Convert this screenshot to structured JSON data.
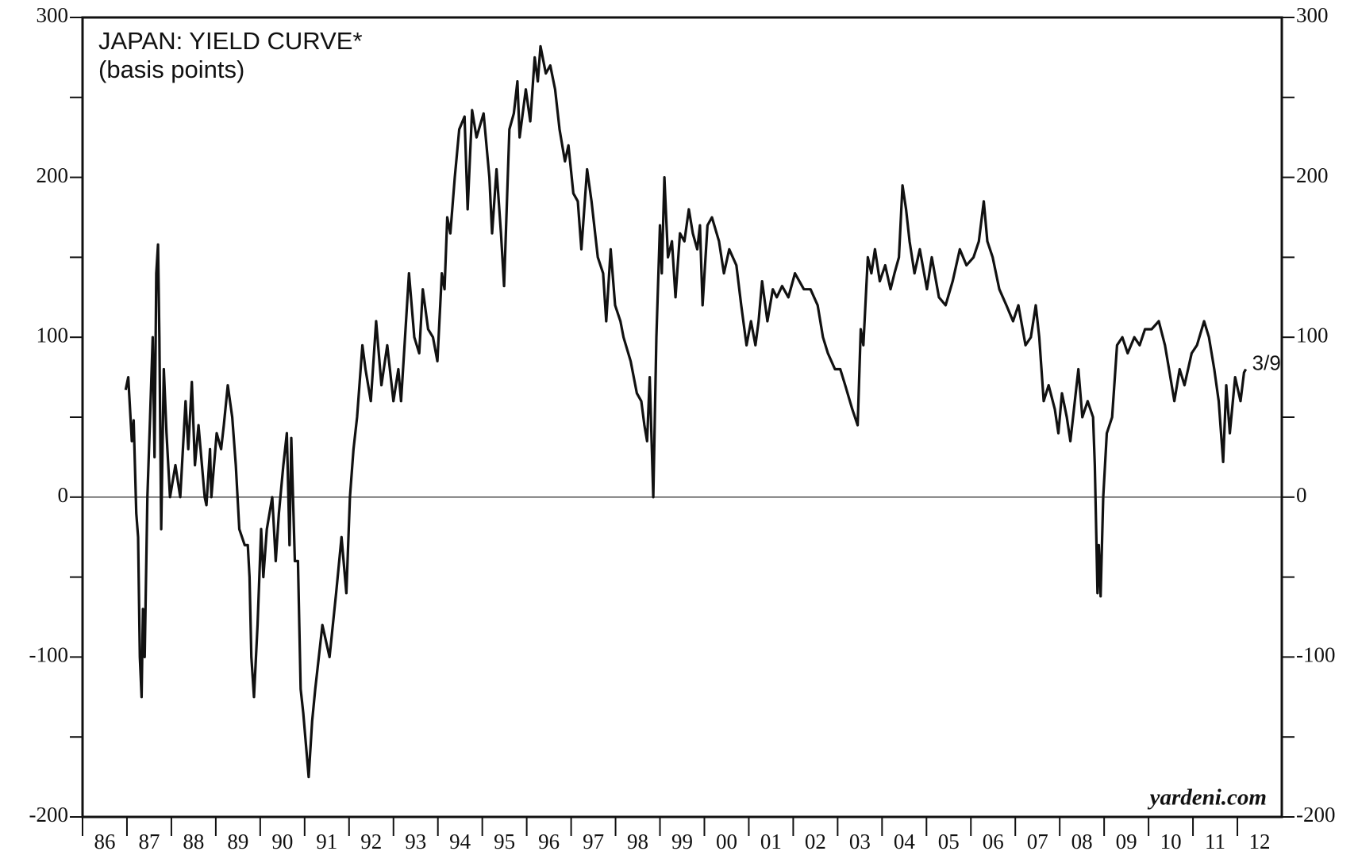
{
  "chart_data": {
    "type": "line",
    "title": "JAPAN: YIELD CURVE*",
    "subtitle": "(basis points)",
    "source": "yardeni.com",
    "end_label": "3/9",
    "xlim": [
      1986,
      2013
    ],
    "xticks": [
      {
        "value": 1986,
        "label": "86"
      },
      {
        "value": 1987,
        "label": "87"
      },
      {
        "value": 1988,
        "label": "88"
      },
      {
        "value": 1989,
        "label": "89"
      },
      {
        "value": 1990,
        "label": "90"
      },
      {
        "value": 1991,
        "label": "91"
      },
      {
        "value": 1992,
        "label": "92"
      },
      {
        "value": 1993,
        "label": "93"
      },
      {
        "value": 1994,
        "label": "94"
      },
      {
        "value": 1995,
        "label": "95"
      },
      {
        "value": 1996,
        "label": "96"
      },
      {
        "value": 1997,
        "label": "97"
      },
      {
        "value": 1998,
        "label": "98"
      },
      {
        "value": 1999,
        "label": "99"
      },
      {
        "value": 2000,
        "label": "00"
      },
      {
        "value": 2001,
        "label": "01"
      },
      {
        "value": 2002,
        "label": "02"
      },
      {
        "value": 2003,
        "label": "03"
      },
      {
        "value": 2004,
        "label": "04"
      },
      {
        "value": 2005,
        "label": "05"
      },
      {
        "value": 2006,
        "label": "06"
      },
      {
        "value": 2007,
        "label": "07"
      },
      {
        "value": 2008,
        "label": "08"
      },
      {
        "value": 2009,
        "label": "09"
      },
      {
        "value": 2010,
        "label": "10"
      },
      {
        "value": 2011,
        "label": "11"
      },
      {
        "value": 2012,
        "label": "12"
      }
    ],
    "ylim": [
      -200,
      300
    ],
    "yticks": [
      -200,
      -100,
      0,
      100,
      200,
      300
    ],
    "yminorticks": [
      -150,
      -50,
      50,
      150,
      250
    ],
    "zero_line": true,
    "series": [
      {
        "color": "#111111",
        "x": [
          1986.97,
          1987.03,
          1987.11,
          1987.15,
          1987.21,
          1987.25,
          1987.29,
          1987.33,
          1987.36,
          1987.4,
          1987.46,
          1987.52,
          1987.58,
          1987.62,
          1987.66,
          1987.7,
          1987.73,
          1987.77,
          1987.83,
          1987.89,
          1987.97,
          1988.09,
          1988.2,
          1988.32,
          1988.38,
          1988.46,
          1988.53,
          1988.61,
          1988.75,
          1988.79,
          1988.87,
          1988.9,
          1989.02,
          1989.12,
          1989.18,
          1989.27,
          1989.37,
          1989.45,
          1989.53,
          1989.65,
          1989.72,
          1989.76,
          1989.8,
          1989.86,
          1989.94,
          1990.02,
          1990.07,
          1990.15,
          1990.27,
          1990.35,
          1990.42,
          1990.52,
          1990.6,
          1990.66,
          1990.7,
          1990.78,
          1990.85,
          1990.91,
          1990.97,
          1991.09,
          1991.17,
          1991.24,
          1991.4,
          1991.56,
          1991.71,
          1991.83,
          1991.94,
          1992.02,
          1992.1,
          1992.18,
          1992.3,
          1992.37,
          1992.49,
          1992.61,
          1992.73,
          1992.86,
          1993.0,
          1993.11,
          1993.17,
          1993.25,
          1993.35,
          1993.47,
          1993.58,
          1993.66,
          1993.78,
          1993.89,
          1993.99,
          1994.09,
          1994.15,
          1994.21,
          1994.28,
          1994.38,
          1994.48,
          1994.6,
          1994.67,
          1994.77,
          1994.87,
          1995.03,
          1995.16,
          1995.22,
          1995.32,
          1995.42,
          1995.49,
          1995.61,
          1995.71,
          1995.79,
          1995.84,
          1995.98,
          1996.08,
          1996.18,
          1996.25,
          1996.31,
          1996.43,
          1996.53,
          1996.64,
          1996.74,
          1996.86,
          1996.94,
          1997.05,
          1997.15,
          1997.23,
          1997.36,
          1997.46,
          1997.6,
          1997.72,
          1997.79,
          1997.89,
          1997.99,
          1998.11,
          1998.18,
          1998.34,
          1998.48,
          1998.58,
          1998.65,
          1998.71,
          1998.77,
          1998.85,
          1998.92,
          1999.0,
          1999.04,
          1999.1,
          1999.18,
          1999.27,
          1999.35,
          1999.45,
          1999.55,
          1999.65,
          1999.74,
          1999.84,
          1999.9,
          1999.96,
          2000.07,
          2000.17,
          2000.33,
          2000.44,
          2000.56,
          2000.72,
          2000.83,
          2000.95,
          2001.05,
          2001.15,
          2001.22,
          2001.3,
          2001.42,
          2001.54,
          2001.63,
          2001.75,
          2001.89,
          2002.04,
          2002.24,
          2002.39,
          2002.55,
          2002.67,
          2002.78,
          2002.94,
          2003.06,
          2003.17,
          2003.33,
          2003.45,
          2003.52,
          2003.58,
          2003.68,
          2003.76,
          2003.84,
          2003.95,
          2004.07,
          2004.19,
          2004.28,
          2004.38,
          2004.46,
          2004.54,
          2004.62,
          2004.73,
          2004.85,
          2005.01,
          2005.12,
          2005.28,
          2005.43,
          2005.59,
          2005.75,
          2005.9,
          2006.06,
          2006.18,
          2006.29,
          2006.37,
          2006.49,
          2006.64,
          2006.8,
          2006.95,
          2007.07,
          2007.23,
          2007.35,
          2007.46,
          2007.54,
          2007.64,
          2007.75,
          2007.89,
          2007.97,
          2008.05,
          2008.16,
          2008.24,
          2008.32,
          2008.42,
          2008.51,
          2008.63,
          2008.75,
          2008.79,
          2008.85,
          2008.88,
          2008.92,
          2008.98,
          2009.06,
          2009.18,
          2009.29,
          2009.41,
          2009.53,
          2009.68,
          2009.8,
          2009.92,
          2010.07,
          2010.23,
          2010.37,
          2010.46,
          2010.58,
          2010.7,
          2010.81,
          2010.97,
          2011.09,
          2011.25,
          2011.36,
          2011.48,
          2011.58,
          2011.68,
          2011.75,
          2011.83,
          2011.95,
          2012.07,
          2012.15,
          2012.19
        ],
        "values": [
          67,
          75,
          35,
          48,
          -10,
          -25,
          -100,
          -125,
          -70,
          -100,
          0,
          50,
          100,
          25,
          140,
          158,
          100,
          -20,
          80,
          40,
          0,
          20,
          0,
          60,
          30,
          72,
          20,
          45,
          0,
          -5,
          30,
          0,
          40,
          30,
          45,
          70,
          50,
          20,
          -20,
          -30,
          -30,
          -50,
          -100,
          -125,
          -80,
          -20,
          -50,
          -20,
          0,
          -40,
          -10,
          20,
          40,
          -30,
          37,
          -40,
          -40,
          -120,
          -135,
          -175,
          -140,
          -120,
          -80,
          -100,
          -60,
          -25,
          -60,
          0,
          30,
          50,
          95,
          80,
          60,
          110,
          70,
          95,
          60,
          80,
          60,
          95,
          140,
          100,
          90,
          130,
          105,
          100,
          85,
          140,
          130,
          175,
          165,
          200,
          230,
          238,
          180,
          242,
          225,
          240,
          200,
          165,
          205,
          165,
          132,
          230,
          240,
          260,
          225,
          255,
          235,
          275,
          260,
          282,
          265,
          270,
          255,
          230,
          210,
          220,
          190,
          185,
          155,
          205,
          185,
          150,
          140,
          110,
          155,
          120,
          110,
          100,
          85,
          65,
          60,
          45,
          35,
          75,
          0,
          100,
          170,
          140,
          200,
          150,
          160,
          125,
          165,
          160,
          180,
          165,
          155,
          170,
          120,
          170,
          175,
          160,
          140,
          155,
          145,
          120,
          95,
          110,
          95,
          110,
          135,
          110,
          130,
          125,
          132,
          125,
          140,
          130,
          130,
          120,
          100,
          90,
          80,
          80,
          70,
          55,
          45,
          105,
          95,
          150,
          140,
          155,
          135,
          145,
          130,
          140,
          150,
          195,
          180,
          160,
          140,
          155,
          130,
          150,
          125,
          120,
          135,
          155,
          145,
          150,
          160,
          185,
          160,
          150,
          130,
          120,
          110,
          120,
          95,
          100,
          120,
          100,
          60,
          70,
          55,
          40,
          65,
          50,
          35,
          55,
          80,
          50,
          60,
          50,
          20,
          -60,
          -30,
          -62,
          0,
          40,
          50,
          95,
          100,
          90,
          100,
          95,
          105,
          105,
          110,
          95,
          80,
          60,
          80,
          70,
          90,
          95,
          110,
          100,
          80,
          60,
          22,
          70,
          40,
          75,
          60,
          78,
          80
        ]
      }
    ]
  }
}
